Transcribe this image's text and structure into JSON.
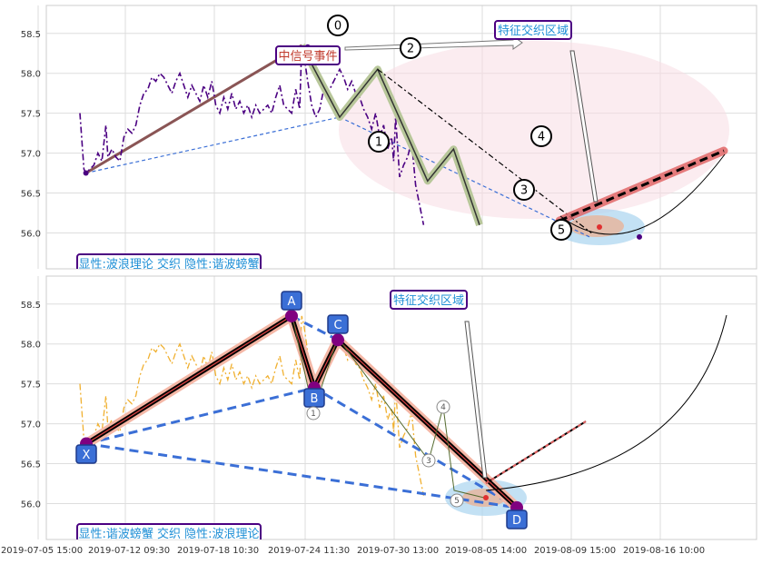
{
  "chart_data": [
    {
      "type": "line",
      "panel": "top",
      "ylim": [
        55.55,
        58.85
      ],
      "yticks": [
        56.0,
        56.5,
        57.0,
        57.5,
        58.0,
        58.5
      ],
      "ytick_labels": [
        "56.0",
        "56.5",
        "57.0",
        "57.5",
        "58.0",
        "58.5"
      ],
      "grid": true,
      "price_color": "#4b0082",
      "price_series": [
        [
          0,
          57.5
        ],
        [
          2,
          56.8
        ],
        [
          3,
          56.75
        ],
        [
          5,
          56.8
        ],
        [
          7,
          56.85
        ],
        [
          9,
          57.0
        ],
        [
          11,
          56.9
        ],
        [
          13,
          57.35
        ],
        [
          14,
          56.95
        ],
        [
          16,
          57.05
        ],
        [
          18,
          56.95
        ],
        [
          20,
          56.9
        ],
        [
          22,
          57.2
        ],
        [
          24,
          57.3
        ],
        [
          26,
          57.25
        ],
        [
          28,
          57.35
        ],
        [
          30,
          57.6
        ],
        [
          32,
          57.75
        ],
        [
          34,
          57.8
        ],
        [
          36,
          57.95
        ],
        [
          38,
          57.9
        ],
        [
          40,
          58.0
        ],
        [
          42,
          57.95
        ],
        [
          44,
          57.85
        ],
        [
          46,
          57.75
        ],
        [
          48,
          57.9
        ],
        [
          50,
          58.0
        ],
        [
          52,
          57.85
        ],
        [
          54,
          57.7
        ],
        [
          56,
          57.85
        ],
        [
          58,
          57.75
        ],
        [
          60,
          57.65
        ],
        [
          62,
          57.85
        ],
        [
          64,
          57.7
        ],
        [
          66,
          57.9
        ],
        [
          68,
          57.6
        ],
        [
          70,
          57.5
        ],
        [
          72,
          57.7
        ],
        [
          74,
          57.55
        ],
        [
          76,
          57.75
        ],
        [
          78,
          57.55
        ],
        [
          80,
          57.65
        ],
        [
          82,
          57.5
        ],
        [
          84,
          57.6
        ],
        [
          86,
          57.45
        ],
        [
          88,
          57.6
        ],
        [
          90,
          57.5
        ],
        [
          92,
          57.55
        ],
        [
          94,
          57.6
        ],
        [
          96,
          57.5
        ],
        [
          98,
          57.7
        ],
        [
          100,
          57.85
        ],
        [
          102,
          57.6
        ],
        [
          104,
          57.55
        ],
        [
          106,
          57.5
        ],
        [
          108,
          57.8
        ],
        [
          110,
          57.55
        ],
        [
          111,
          58.35
        ],
        [
          112,
          58.25
        ],
        [
          114,
          57.9
        ],
        [
          116,
          57.6
        ],
        [
          118,
          57.45
        ],
        [
          120,
          57.55
        ],
        [
          122,
          57.8
        ],
        [
          124,
          57.75
        ],
        [
          126,
          57.85
        ],
        [
          128,
          57.95
        ],
        [
          130,
          58.05
        ],
        [
          132,
          57.95
        ],
        [
          134,
          57.8
        ],
        [
          136,
          57.9
        ],
        [
          138,
          57.75
        ],
        [
          140,
          57.7
        ],
        [
          142,
          57.55
        ],
        [
          144,
          57.45
        ],
        [
          146,
          57.3
        ],
        [
          148,
          57.5
        ],
        [
          150,
          57.2
        ],
        [
          152,
          57.35
        ],
        [
          154,
          57.05
        ],
        [
          156,
          57.2
        ],
        [
          157,
          56.9
        ],
        [
          158,
          57.45
        ],
        [
          160,
          56.7
        ],
        [
          162,
          56.85
        ],
        [
          164,
          56.95
        ],
        [
          166,
          57.15
        ],
        [
          168,
          56.6
        ],
        [
          170,
          56.35
        ],
        [
          172,
          56.1
        ]
      ],
      "wave_points": [
        [
          111,
          58.35
        ],
        [
          130,
          57.45
        ],
        [
          149,
          58.05
        ],
        [
          174,
          56.65
        ],
        [
          187,
          57.05
        ],
        [
          200,
          56.1
        ]
      ],
      "wave_labels": [
        "0",
        "1",
        "2",
        "3",
        "4",
        "5"
      ],
      "annotations": {
        "signal_event": "中信号事件",
        "zone_label": "特征交织区域",
        "footer": "显性:波浪理论 交织 隐性:谐波螃蟹"
      }
    },
    {
      "type": "line",
      "panel": "bottom",
      "ylim": [
        55.55,
        58.85
      ],
      "yticks": [
        56.0,
        56.5,
        57.0,
        57.5,
        58.0,
        58.5
      ],
      "ytick_labels": [
        "56.0",
        "56.5",
        "57.0",
        "57.5",
        "58.0",
        "58.5"
      ],
      "grid": true,
      "price_color": "#f0b030",
      "harmonic_points": [
        [
          0,
          56.75
        ],
        [
          111,
          58.35
        ],
        [
          129,
          57.45
        ],
        [
          143,
          58.05
        ],
        [
          245,
          55.95
        ]
      ],
      "harmonic_labels": [
        "X",
        "A",
        "B",
        "C",
        "D"
      ],
      "wave_labels": [
        "1",
        "3",
        "4",
        "5"
      ],
      "annotations": {
        "zone_label": "特征交织区域",
        "footer": "显性:谐波螃蟹 交织 隐性:波浪理论"
      }
    }
  ],
  "x_axis": {
    "tick_labels": [
      "2019-07-05 15:00",
      "2019-07-12 09:30",
      "2019-07-18 10:30",
      "2019-07-24 11:30",
      "2019-07-30 13:00",
      "2019-08-05 14:00",
      "2019-08-09 15:00",
      "2019-08-16 10:00"
    ]
  },
  "colors": {
    "harmonic_blue": "#3b6fd6",
    "marker_purple": "#800080",
    "label_box_blue": "#3b6fd6",
    "annotation_text_blue": "#1f8fd6",
    "annotation_text_red": "#c0392b",
    "zone_pink": "#f7dde3",
    "zone_blue": "#a9d4f0",
    "trend_red": "#e06060"
  }
}
